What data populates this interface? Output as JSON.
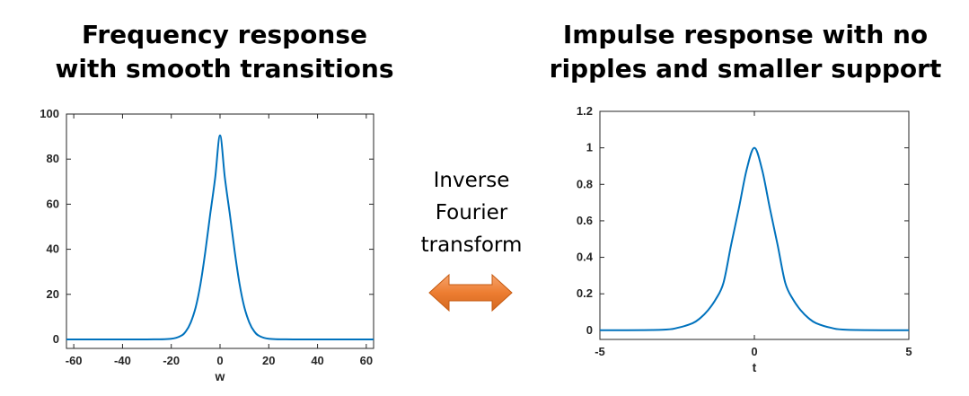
{
  "left_panel": {
    "title_line1": "Frequency response",
    "title_line2": "with smooth transitions"
  },
  "right_panel": {
    "title_line1": "Impulse response with no",
    "title_line2": "ripples and smaller support"
  },
  "middle": {
    "line1": "Inverse",
    "line2": "Fourier",
    "line3": "transform",
    "arrow_color": "#ED7D31",
    "arrow_icon": "double-headed-arrow-icon"
  },
  "chart_data": [
    {
      "type": "line",
      "xlabel": "w",
      "ylabel": "",
      "xlim": [
        -63,
        63
      ],
      "ylim": [
        -4,
        100
      ],
      "xticks": [
        -60,
        -40,
        -20,
        0,
        20,
        40,
        60
      ],
      "yticks": [
        0,
        20,
        40,
        60,
        80,
        100
      ],
      "series": [
        {
          "color": "#0072BD",
          "x": [
            -63,
            -30,
            -20,
            -16,
            -14,
            -12,
            -10,
            -8,
            -6,
            -4,
            -2,
            0,
            2,
            4,
            6,
            8,
            10,
            12,
            14,
            16,
            20,
            30,
            63
          ],
          "y": [
            0,
            0,
            0.3,
            1.6,
            3.6,
            7.5,
            14.2,
            24.7,
            39.1,
            55.7,
            71.7,
            90.5,
            71.7,
            55.7,
            39.1,
            24.7,
            14.2,
            7.5,
            3.6,
            1.6,
            0.3,
            0,
            0
          ]
        }
      ]
    },
    {
      "type": "line",
      "xlabel": "t",
      "ylabel": "",
      "xlim": [
        -5,
        5
      ],
      "ylim": [
        -0.05,
        1.2
      ],
      "xticks": [
        -5,
        0,
        5
      ],
      "yticks": [
        0,
        0.2,
        0.4,
        0.6,
        0.8,
        1,
        1.2
      ],
      "series": [
        {
          "color": "#0072BD",
          "x": [
            -5,
            -3,
            -2.5,
            -2,
            -1.75,
            -1.5,
            -1.25,
            -1,
            -0.75,
            -0.5,
            -0.25,
            0,
            0.25,
            0.5,
            0.75,
            1,
            1.25,
            1.5,
            1.75,
            2,
            2.5,
            3,
            5
          ],
          "y": [
            0,
            0.003,
            0.013,
            0.039,
            0.067,
            0.11,
            0.17,
            0.26,
            0.47,
            0.67,
            0.88,
            1.0,
            0.88,
            0.67,
            0.47,
            0.26,
            0.17,
            0.11,
            0.067,
            0.039,
            0.013,
            0.003,
            0
          ]
        }
      ]
    }
  ]
}
